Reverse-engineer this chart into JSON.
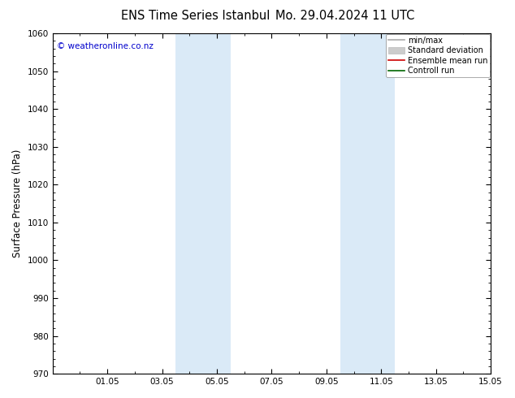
{
  "title_left": "ENS Time Series Istanbul",
  "title_right": "Mo. 29.04.2024 11 UTC",
  "ylabel": "Surface Pressure (hPa)",
  "ylim": [
    970,
    1060
  ],
  "yticks": [
    970,
    980,
    990,
    1000,
    1010,
    1020,
    1030,
    1040,
    1050,
    1060
  ],
  "xlim": [
    0,
    16
  ],
  "xtick_labels": [
    "01.05",
    "03.05",
    "05.05",
    "07.05",
    "09.05",
    "11.05",
    "13.05",
    "15.05"
  ],
  "xtick_positions": [
    2,
    4,
    6,
    8,
    10,
    12,
    14,
    16
  ],
  "shade_bands": [
    {
      "x_start": 4.5,
      "x_end": 6.5
    },
    {
      "x_start": 10.5,
      "x_end": 12.5
    }
  ],
  "shade_color": "#daeaf7",
  "background_color": "#ffffff",
  "watermark_text": "© weatheronline.co.nz",
  "watermark_color": "#0000cc",
  "legend_items": [
    {
      "label": "min/max",
      "color": "#aaaaaa",
      "lw": 1.2,
      "type": "line"
    },
    {
      "label": "Standard deviation",
      "color": "#cccccc",
      "lw": 6,
      "type": "patch"
    },
    {
      "label": "Ensemble mean run",
      "color": "#cc0000",
      "lw": 1.2,
      "type": "line"
    },
    {
      "label": "Controll run",
      "color": "#006600",
      "lw": 1.2,
      "type": "line"
    }
  ],
  "title_fontsize": 10.5,
  "tick_label_fontsize": 7.5,
  "ylabel_fontsize": 8.5,
  "watermark_fontsize": 7.5,
  "legend_fontsize": 7.0
}
